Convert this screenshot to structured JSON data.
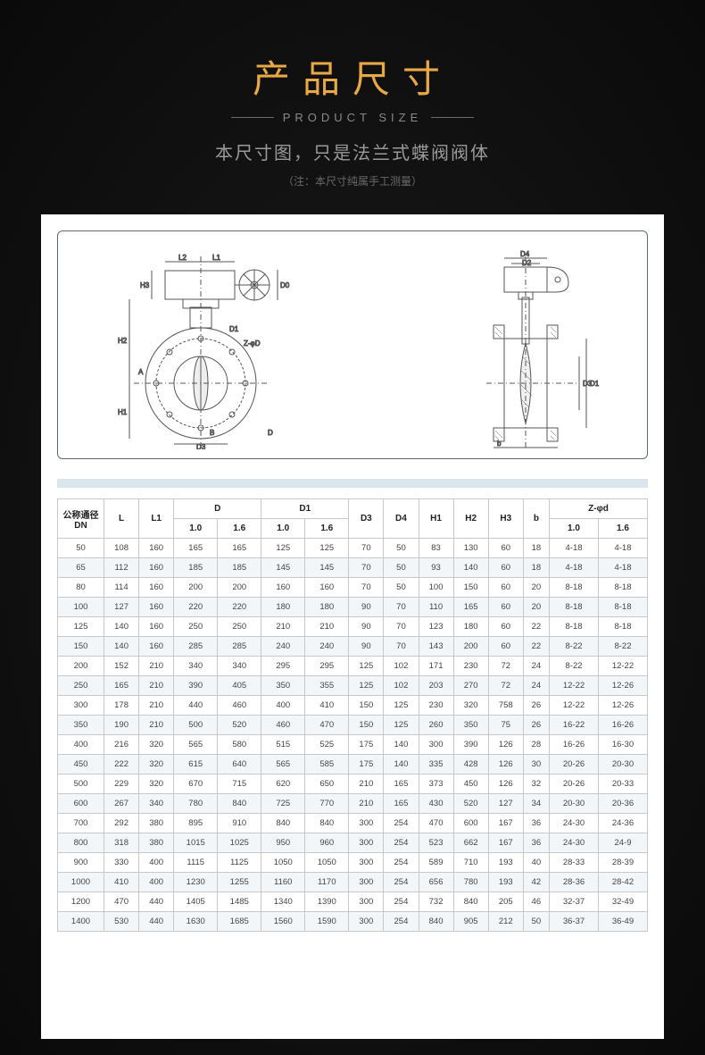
{
  "header": {
    "title_cn": "产品尺寸",
    "title_en": "PRODUCT SIZE",
    "subtitle": "本尺寸图，只是法兰式蝶阀阀体",
    "note": "（注：本尺寸纯属手工测量）"
  },
  "diagram": {
    "labels_left": [
      "L2",
      "L1",
      "D0",
      "H3",
      "D1",
      "Z-φD",
      "H2",
      "A",
      "H1",
      "D3",
      "D",
      "B"
    ],
    "labels_right": [
      "D4",
      "D2",
      "D3",
      "D1"
    ]
  },
  "table": {
    "header_row1": [
      "公称通径\nDN",
      "L",
      "L1",
      "D",
      "D1",
      "D3",
      "D4",
      "H1",
      "H2",
      "H3",
      "b",
      "Z-φd"
    ],
    "header_row2_spans": {
      "D": [
        "1.0",
        "1.6"
      ],
      "D1": [
        "1.0",
        "1.6"
      ],
      "Zphid": [
        "1.0",
        "1.6"
      ]
    },
    "columns": [
      "DN",
      "L",
      "L1",
      "D_10",
      "D_16",
      "D1_10",
      "D1_16",
      "D3",
      "D4",
      "H1",
      "H2",
      "H3",
      "b",
      "Z_10",
      "Z_16"
    ],
    "rows": [
      [
        "50",
        "108",
        "160",
        "165",
        "165",
        "125",
        "125",
        "70",
        "50",
        "83",
        "130",
        "60",
        "18",
        "4-18",
        "4-18"
      ],
      [
        "65",
        "112",
        "160",
        "185",
        "185",
        "145",
        "145",
        "70",
        "50",
        "93",
        "140",
        "60",
        "18",
        "4-18",
        "4-18"
      ],
      [
        "80",
        "114",
        "160",
        "200",
        "200",
        "160",
        "160",
        "70",
        "50",
        "100",
        "150",
        "60",
        "20",
        "8-18",
        "8-18"
      ],
      [
        "100",
        "127",
        "160",
        "220",
        "220",
        "180",
        "180",
        "90",
        "70",
        "110",
        "165",
        "60",
        "20",
        "8-18",
        "8-18"
      ],
      [
        "125",
        "140",
        "160",
        "250",
        "250",
        "210",
        "210",
        "90",
        "70",
        "123",
        "180",
        "60",
        "22",
        "8-18",
        "8-18"
      ],
      [
        "150",
        "140",
        "160",
        "285",
        "285",
        "240",
        "240",
        "90",
        "70",
        "143",
        "200",
        "60",
        "22",
        "8-22",
        "8-22"
      ],
      [
        "200",
        "152",
        "210",
        "340",
        "340",
        "295",
        "295",
        "125",
        "102",
        "171",
        "230",
        "72",
        "24",
        "8-22",
        "12-22"
      ],
      [
        "250",
        "165",
        "210",
        "390",
        "405",
        "350",
        "355",
        "125",
        "102",
        "203",
        "270",
        "72",
        "24",
        "12-22",
        "12-26"
      ],
      [
        "300",
        "178",
        "210",
        "440",
        "460",
        "400",
        "410",
        "150",
        "125",
        "230",
        "320",
        "758",
        "26",
        "12-22",
        "12-26"
      ],
      [
        "350",
        "190",
        "210",
        "500",
        "520",
        "460",
        "470",
        "150",
        "125",
        "260",
        "350",
        "75",
        "26",
        "16-22",
        "16-26"
      ],
      [
        "400",
        "216",
        "320",
        "565",
        "580",
        "515",
        "525",
        "175",
        "140",
        "300",
        "390",
        "126",
        "28",
        "16-26",
        "16-30"
      ],
      [
        "450",
        "222",
        "320",
        "615",
        "640",
        "565",
        "585",
        "175",
        "140",
        "335",
        "428",
        "126",
        "30",
        "20-26",
        "20-30"
      ],
      [
        "500",
        "229",
        "320",
        "670",
        "715",
        "620",
        "650",
        "210",
        "165",
        "373",
        "450",
        "126",
        "32",
        "20-26",
        "20-33"
      ],
      [
        "600",
        "267",
        "340",
        "780",
        "840",
        "725",
        "770",
        "210",
        "165",
        "430",
        "520",
        "127",
        "34",
        "20-30",
        "20-36"
      ],
      [
        "700",
        "292",
        "380",
        "895",
        "910",
        "840",
        "840",
        "300",
        "254",
        "470",
        "600",
        "167",
        "36",
        "24-30",
        "24-36"
      ],
      [
        "800",
        "318",
        "380",
        "1015",
        "1025",
        "950",
        "960",
        "300",
        "254",
        "523",
        "662",
        "167",
        "36",
        "24-30",
        "24-9"
      ],
      [
        "900",
        "330",
        "400",
        "1115",
        "1125",
        "1050",
        "1050",
        "300",
        "254",
        "589",
        "710",
        "193",
        "40",
        "28-33",
        "28-39"
      ],
      [
        "1000",
        "410",
        "400",
        "1230",
        "1255",
        "1160",
        "1170",
        "300",
        "254",
        "656",
        "780",
        "193",
        "42",
        "28-36",
        "28-42"
      ],
      [
        "1200",
        "470",
        "440",
        "1405",
        "1485",
        "1340",
        "1390",
        "300",
        "254",
        "732",
        "840",
        "205",
        "46",
        "32-37",
        "32-49"
      ],
      [
        "1400",
        "530",
        "440",
        "1630",
        "1685",
        "1560",
        "1590",
        "300",
        "254",
        "840",
        "905",
        "212",
        "50",
        "36-37",
        "36-49"
      ]
    ]
  },
  "colors": {
    "accent": "#e8a845",
    "bg_dark": "#0a0a0a",
    "panel": "#ffffff",
    "table_border": "#c8c8c8",
    "table_stripe": "#f3f6f9",
    "diagram_border": "#5a6a7a"
  }
}
